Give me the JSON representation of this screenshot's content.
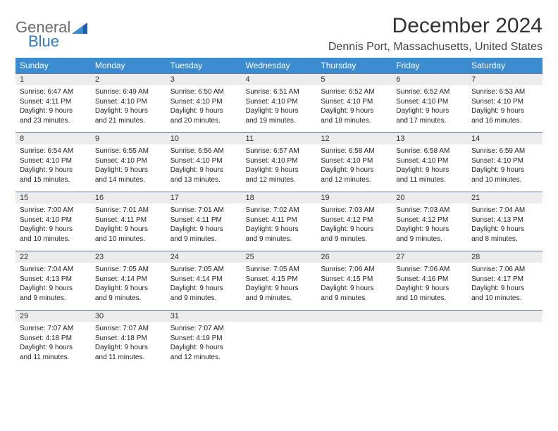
{
  "brand": {
    "word1": "General",
    "word2": "Blue"
  },
  "title": "December 2024",
  "location": "Dennis Port, Massachusetts, United States",
  "colors": {
    "header_bg": "#3b8bd0",
    "header_text": "#ffffff",
    "daynum_bg": "#ececec",
    "daynum_border": "#5f7a9a",
    "text": "#222222",
    "logo_gray": "#6b6b6b",
    "logo_blue": "#2f78c2"
  },
  "weekdays": [
    "Sunday",
    "Monday",
    "Tuesday",
    "Wednesday",
    "Thursday",
    "Friday",
    "Saturday"
  ],
  "weeks": [
    [
      {
        "n": "1",
        "sr": "Sunrise: 6:47 AM",
        "ss": "Sunset: 4:11 PM",
        "dl1": "Daylight: 9 hours",
        "dl2": "and 23 minutes."
      },
      {
        "n": "2",
        "sr": "Sunrise: 6:49 AM",
        "ss": "Sunset: 4:10 PM",
        "dl1": "Daylight: 9 hours",
        "dl2": "and 21 minutes."
      },
      {
        "n": "3",
        "sr": "Sunrise: 6:50 AM",
        "ss": "Sunset: 4:10 PM",
        "dl1": "Daylight: 9 hours",
        "dl2": "and 20 minutes."
      },
      {
        "n": "4",
        "sr": "Sunrise: 6:51 AM",
        "ss": "Sunset: 4:10 PM",
        "dl1": "Daylight: 9 hours",
        "dl2": "and 19 minutes."
      },
      {
        "n": "5",
        "sr": "Sunrise: 6:52 AM",
        "ss": "Sunset: 4:10 PM",
        "dl1": "Daylight: 9 hours",
        "dl2": "and 18 minutes."
      },
      {
        "n": "6",
        "sr": "Sunrise: 6:52 AM",
        "ss": "Sunset: 4:10 PM",
        "dl1": "Daylight: 9 hours",
        "dl2": "and 17 minutes."
      },
      {
        "n": "7",
        "sr": "Sunrise: 6:53 AM",
        "ss": "Sunset: 4:10 PM",
        "dl1": "Daylight: 9 hours",
        "dl2": "and 16 minutes."
      }
    ],
    [
      {
        "n": "8",
        "sr": "Sunrise: 6:54 AM",
        "ss": "Sunset: 4:10 PM",
        "dl1": "Daylight: 9 hours",
        "dl2": "and 15 minutes."
      },
      {
        "n": "9",
        "sr": "Sunrise: 6:55 AM",
        "ss": "Sunset: 4:10 PM",
        "dl1": "Daylight: 9 hours",
        "dl2": "and 14 minutes."
      },
      {
        "n": "10",
        "sr": "Sunrise: 6:56 AM",
        "ss": "Sunset: 4:10 PM",
        "dl1": "Daylight: 9 hours",
        "dl2": "and 13 minutes."
      },
      {
        "n": "11",
        "sr": "Sunrise: 6:57 AM",
        "ss": "Sunset: 4:10 PM",
        "dl1": "Daylight: 9 hours",
        "dl2": "and 12 minutes."
      },
      {
        "n": "12",
        "sr": "Sunrise: 6:58 AM",
        "ss": "Sunset: 4:10 PM",
        "dl1": "Daylight: 9 hours",
        "dl2": "and 12 minutes."
      },
      {
        "n": "13",
        "sr": "Sunrise: 6:58 AM",
        "ss": "Sunset: 4:10 PM",
        "dl1": "Daylight: 9 hours",
        "dl2": "and 11 minutes."
      },
      {
        "n": "14",
        "sr": "Sunrise: 6:59 AM",
        "ss": "Sunset: 4:10 PM",
        "dl1": "Daylight: 9 hours",
        "dl2": "and 10 minutes."
      }
    ],
    [
      {
        "n": "15",
        "sr": "Sunrise: 7:00 AM",
        "ss": "Sunset: 4:10 PM",
        "dl1": "Daylight: 9 hours",
        "dl2": "and 10 minutes."
      },
      {
        "n": "16",
        "sr": "Sunrise: 7:01 AM",
        "ss": "Sunset: 4:11 PM",
        "dl1": "Daylight: 9 hours",
        "dl2": "and 10 minutes."
      },
      {
        "n": "17",
        "sr": "Sunrise: 7:01 AM",
        "ss": "Sunset: 4:11 PM",
        "dl1": "Daylight: 9 hours",
        "dl2": "and 9 minutes."
      },
      {
        "n": "18",
        "sr": "Sunrise: 7:02 AM",
        "ss": "Sunset: 4:11 PM",
        "dl1": "Daylight: 9 hours",
        "dl2": "and 9 minutes."
      },
      {
        "n": "19",
        "sr": "Sunrise: 7:03 AM",
        "ss": "Sunset: 4:12 PM",
        "dl1": "Daylight: 9 hours",
        "dl2": "and 9 minutes."
      },
      {
        "n": "20",
        "sr": "Sunrise: 7:03 AM",
        "ss": "Sunset: 4:12 PM",
        "dl1": "Daylight: 9 hours",
        "dl2": "and 9 minutes."
      },
      {
        "n": "21",
        "sr": "Sunrise: 7:04 AM",
        "ss": "Sunset: 4:13 PM",
        "dl1": "Daylight: 9 hours",
        "dl2": "and 8 minutes."
      }
    ],
    [
      {
        "n": "22",
        "sr": "Sunrise: 7:04 AM",
        "ss": "Sunset: 4:13 PM",
        "dl1": "Daylight: 9 hours",
        "dl2": "and 9 minutes."
      },
      {
        "n": "23",
        "sr": "Sunrise: 7:05 AM",
        "ss": "Sunset: 4:14 PM",
        "dl1": "Daylight: 9 hours",
        "dl2": "and 9 minutes."
      },
      {
        "n": "24",
        "sr": "Sunrise: 7:05 AM",
        "ss": "Sunset: 4:14 PM",
        "dl1": "Daylight: 9 hours",
        "dl2": "and 9 minutes."
      },
      {
        "n": "25",
        "sr": "Sunrise: 7:05 AM",
        "ss": "Sunset: 4:15 PM",
        "dl1": "Daylight: 9 hours",
        "dl2": "and 9 minutes."
      },
      {
        "n": "26",
        "sr": "Sunrise: 7:06 AM",
        "ss": "Sunset: 4:15 PM",
        "dl1": "Daylight: 9 hours",
        "dl2": "and 9 minutes."
      },
      {
        "n": "27",
        "sr": "Sunrise: 7:06 AM",
        "ss": "Sunset: 4:16 PM",
        "dl1": "Daylight: 9 hours",
        "dl2": "and 10 minutes."
      },
      {
        "n": "28",
        "sr": "Sunrise: 7:06 AM",
        "ss": "Sunset: 4:17 PM",
        "dl1": "Daylight: 9 hours",
        "dl2": "and 10 minutes."
      }
    ],
    [
      {
        "n": "29",
        "sr": "Sunrise: 7:07 AM",
        "ss": "Sunset: 4:18 PM",
        "dl1": "Daylight: 9 hours",
        "dl2": "and 11 minutes."
      },
      {
        "n": "30",
        "sr": "Sunrise: 7:07 AM",
        "ss": "Sunset: 4:18 PM",
        "dl1": "Daylight: 9 hours",
        "dl2": "and 11 minutes."
      },
      {
        "n": "31",
        "sr": "Sunrise: 7:07 AM",
        "ss": "Sunset: 4:19 PM",
        "dl1": "Daylight: 9 hours",
        "dl2": "and 12 minutes."
      },
      null,
      null,
      null,
      null
    ]
  ]
}
